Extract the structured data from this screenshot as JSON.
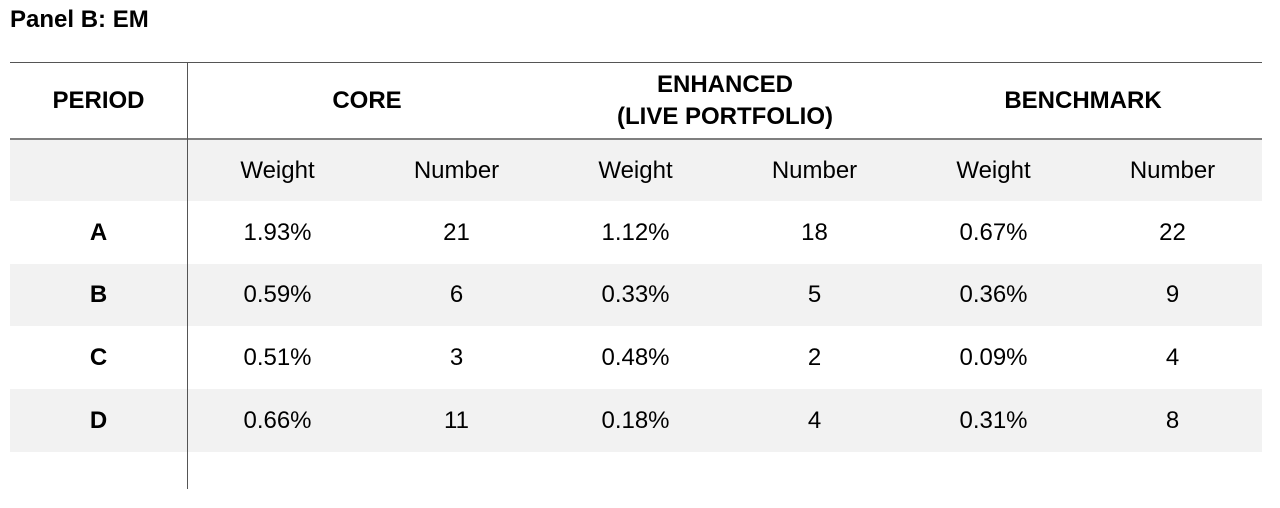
{
  "panel_title": "Panel B: EM",
  "header": {
    "period": "PERIOD",
    "core": "CORE",
    "enhanced_line1": "ENHANCED",
    "enhanced_line2": "(LIVE PORTFOLIO)",
    "benchmark": "BENCHMARK"
  },
  "subheader": [
    "Weight",
    "Number",
    "Weight",
    "Number",
    "Weight",
    "Number"
  ],
  "rows": [
    {
      "period": "A",
      "cells": [
        "1.93%",
        "21",
        "1.12%",
        "18",
        "0.67%",
        "22"
      ]
    },
    {
      "period": "B",
      "cells": [
        "0.59%",
        "6",
        "0.33%",
        "5",
        "0.36%",
        "9"
      ]
    },
    {
      "period": "C",
      "cells": [
        "0.51%",
        "3",
        "0.48%",
        "2",
        "0.09%",
        "4"
      ]
    },
    {
      "period": "D",
      "cells": [
        "0.66%",
        "11",
        "0.18%",
        "4",
        "0.31%",
        "8"
      ]
    }
  ]
}
